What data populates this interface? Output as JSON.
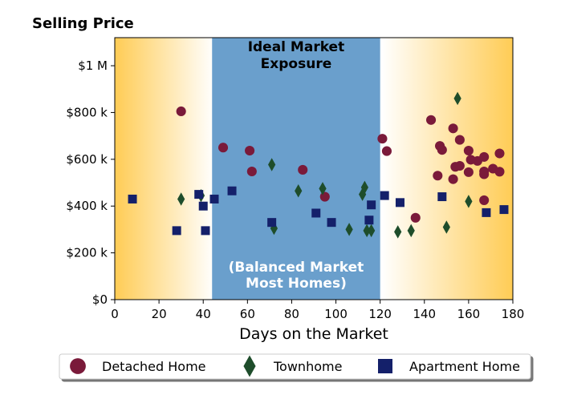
{
  "chart_data": {
    "type": "scatter",
    "title": "Selling Price",
    "xlabel": "Days on the Market",
    "ylabel": "",
    "xlim": [
      0,
      180
    ],
    "ylim": [
      0,
      1120000
    ],
    "x_ticks": [
      0,
      20,
      40,
      60,
      80,
      100,
      120,
      140,
      160,
      180
    ],
    "x_tick_labels": [
      "0",
      "20",
      "40",
      "60",
      "80",
      "100",
      "120",
      "140",
      "160",
      "180"
    ],
    "y_ticks": [
      0,
      200000,
      400000,
      600000,
      800000,
      1000000
    ],
    "y_tick_labels": [
      "$0",
      "$200 k",
      "$400 k",
      "$600 k",
      "$800 k",
      "$1 M"
    ],
    "grid": false,
    "legend_position": "bottom",
    "annotations": {
      "ideal_zone": {
        "x_range": [
          44,
          120
        ],
        "label_line1": "Ideal Market",
        "label_line2": "Exposure",
        "color": "#6a9fcc"
      },
      "balanced": {
        "label_line1": "(Balanced Market",
        "label_line2": "Most Homes)"
      }
    },
    "background_gradient": {
      "edge_color": "#ffcc55",
      "center_color": "#ffffff"
    },
    "series": [
      {
        "name": "Detached Home",
        "marker": "circle",
        "color": "#7a1a3a",
        "points": [
          [
            30,
            805000
          ],
          [
            49,
            650000
          ],
          [
            61,
            637000
          ],
          [
            62,
            548000
          ],
          [
            85,
            555000
          ],
          [
            95,
            440000
          ],
          [
            121,
            688000
          ],
          [
            123,
            635000
          ],
          [
            136,
            350000
          ],
          [
            143,
            768000
          ],
          [
            146,
            530000
          ],
          [
            147,
            657000
          ],
          [
            148,
            640000
          ],
          [
            153,
            732000
          ],
          [
            153,
            515000
          ],
          [
            154,
            568000
          ],
          [
            156,
            572000
          ],
          [
            156,
            683000
          ],
          [
            160,
            545000
          ],
          [
            160,
            637000
          ],
          [
            161,
            598000
          ],
          [
            164,
            593000
          ],
          [
            167,
            610000
          ],
          [
            167,
            548000
          ],
          [
            167,
            536000
          ],
          [
            167,
            425000
          ],
          [
            171,
            560000
          ],
          [
            174,
            625000
          ],
          [
            174,
            547000
          ]
        ]
      },
      {
        "name": "Townhome",
        "marker": "diamond",
        "color": "#1e4d2b",
        "points": [
          [
            30,
            430000
          ],
          [
            39,
            445000
          ],
          [
            71,
            577000
          ],
          [
            72,
            305000
          ],
          [
            83,
            465000
          ],
          [
            94,
            475000
          ],
          [
            106,
            300000
          ],
          [
            112,
            450000
          ],
          [
            113,
            480000
          ],
          [
            114,
            295000
          ],
          [
            116,
            295000
          ],
          [
            128,
            290000
          ],
          [
            134,
            295000
          ],
          [
            150,
            310000
          ],
          [
            155,
            860000
          ],
          [
            160,
            420000
          ]
        ]
      },
      {
        "name": "Apartment Home",
        "marker": "square",
        "color": "#14206a",
        "points": [
          [
            8,
            430000
          ],
          [
            28,
            295000
          ],
          [
            38,
            450000
          ],
          [
            40,
            400000
          ],
          [
            41,
            295000
          ],
          [
            45,
            430000
          ],
          [
            53,
            465000
          ],
          [
            71,
            330000
          ],
          [
            91,
            370000
          ],
          [
            98,
            330000
          ],
          [
            115,
            340000
          ],
          [
            116,
            405000
          ],
          [
            122,
            445000
          ],
          [
            129,
            415000
          ],
          [
            148,
            440000
          ],
          [
            168,
            372000
          ],
          [
            176,
            385000
          ]
        ]
      }
    ]
  }
}
